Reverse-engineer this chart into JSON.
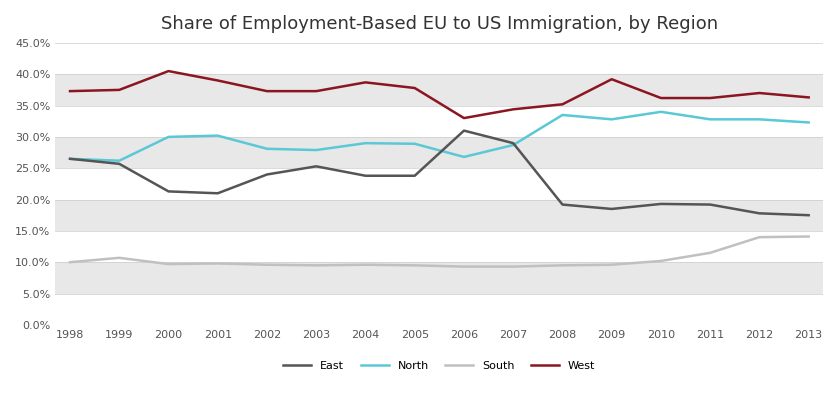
{
  "title": "Share of Employment-Based EU to US Immigration, by Region",
  "years": [
    1998,
    1999,
    2000,
    2001,
    2002,
    2003,
    2004,
    2005,
    2006,
    2007,
    2008,
    2009,
    2010,
    2011,
    2012,
    2013
  ],
  "east": [
    0.265,
    0.257,
    0.213,
    0.21,
    0.24,
    0.253,
    0.238,
    0.238,
    0.31,
    0.29,
    0.192,
    0.185,
    0.193,
    0.192,
    0.178,
    0.175
  ],
  "north": [
    0.265,
    0.262,
    0.3,
    0.302,
    0.281,
    0.279,
    0.29,
    0.289,
    0.268,
    0.287,
    0.335,
    0.328,
    0.34,
    0.328,
    0.328,
    0.323
  ],
  "south": [
    0.1,
    0.107,
    0.097,
    0.098,
    0.096,
    0.095,
    0.096,
    0.095,
    0.093,
    0.093,
    0.095,
    0.096,
    0.102,
    0.115,
    0.14,
    0.141
  ],
  "west": [
    0.373,
    0.375,
    0.405,
    0.39,
    0.373,
    0.373,
    0.387,
    0.378,
    0.33,
    0.344,
    0.352,
    0.392,
    0.362,
    0.362,
    0.37,
    0.363
  ],
  "east_color": "#555555",
  "north_color": "#5BC8D5",
  "south_color": "#C0C0C0",
  "west_color": "#8B1520",
  "ylim": [
    0.0,
    0.45
  ],
  "yticks": [
    0.0,
    0.05,
    0.1,
    0.15,
    0.2,
    0.25,
    0.3,
    0.35,
    0.4,
    0.45
  ],
  "band_colors": [
    "#FFFFFF",
    "#E8E8E8"
  ],
  "line_width": 1.8,
  "tick_fontsize": 8,
  "title_fontsize": 13
}
